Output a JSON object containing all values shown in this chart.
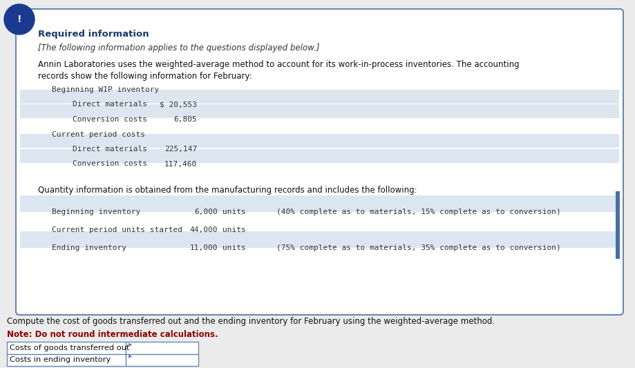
{
  "bg_color": "#ebebeb",
  "box_bg": "#ffffff",
  "box_border": "#4a6fa5",
  "title": "Required information",
  "title_color": "#1a3a6b",
  "subtitle": "[The following information applies to the questions displayed below.]",
  "intro_line1": "Annin Laboratories uses the weighted-average method to account for its work-in-process inventories. The accounting",
  "intro_line2": "records show the following information for February:",
  "cost_section": [
    {
      "label": "Beginning WIP inventory",
      "value": "",
      "indent": 0
    },
    {
      "label": "Direct materials",
      "value": "$ 20,553",
      "indent": 1
    },
    {
      "label": "Conversion costs",
      "value": "6,805",
      "indent": 1
    },
    {
      "label": "Current period costs",
      "value": "",
      "indent": 0
    },
    {
      "label": "Direct materials",
      "value": "225,147",
      "indent": 1
    },
    {
      "label": "Conversion costs",
      "value": "117,460",
      "indent": 1
    }
  ],
  "qty_intro": "Quantity information is obtained from the manufacturing records and includes the following:",
  "qty_section": [
    {
      "label": "Beginning inventory",
      "value": "6,000",
      "unit": "units",
      "note": "(40% complete as to materials, 15% complete as to conversion)"
    },
    {
      "label": "Current period units started",
      "value": "44,000",
      "unit": "units",
      "note": ""
    },
    {
      "label": "Ending inventory",
      "value": "11,000",
      "unit": "units",
      "note": "(75% complete as to materials, 35% complete as to conversion)"
    }
  ],
  "compute_text": "Compute the cost of goods transferred out and the ending inventory for February using the weighted-average method.",
  "note_text": "Note: Do not round intermediate calculations.",
  "table_rows": [
    "Costs of goods transferred out",
    "Costs in ending inventory"
  ],
  "exclamation_bg": "#1a3a8f",
  "mono_color": "#333333",
  "table_border": "#5b7fb5",
  "qty_row_colors": [
    "#dce6f1",
    "#ffffff",
    "#dce6f1"
  ]
}
